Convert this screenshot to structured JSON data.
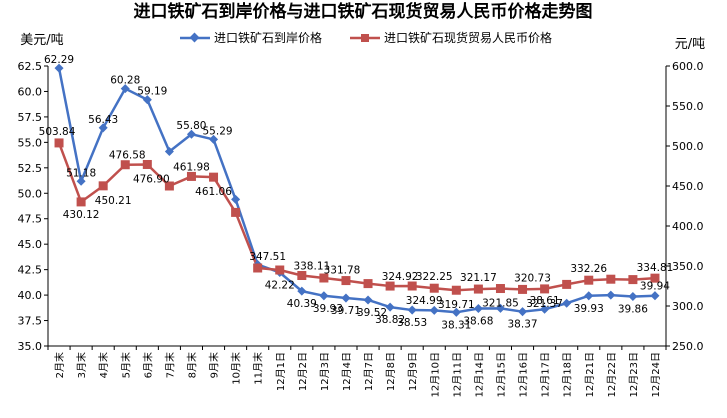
{
  "chart_data": {
    "type": "line",
    "title": "进口铁矿石到岸价格与进口铁矿石现货贸易人民币价格走势图",
    "y_left_unit": "美元/吨",
    "y_right_unit": "元/吨",
    "y_left_range": [
      35.0,
      62.5
    ],
    "y_left_ticks": [
      "35.0",
      "37.5",
      "40.0",
      "42.5",
      "45.0",
      "47.5",
      "50.0",
      "52.5",
      "55.0",
      "57.5",
      "60.0",
      "62.5"
    ],
    "y_right_range": [
      250.0,
      600.0
    ],
    "y_right_ticks": [
      "250.0",
      "300.0",
      "350.0",
      "400.0",
      "450.0",
      "500.0",
      "550.0",
      "600.0"
    ],
    "grid": false,
    "legend_position": "top",
    "categories": [
      "2月末",
      "3月末",
      "4月末",
      "5月末",
      "6月末",
      "7月末",
      "8月末",
      "9月末",
      "10月末",
      "11月末",
      "12月1日",
      "12月2日",
      "12月3日",
      "12月4日",
      "12月7日",
      "12月8日",
      "12月9日",
      "12月10日",
      "12月11日",
      "12月14日",
      "12月15日",
      "12月16日",
      "12月17日",
      "12月18日",
      "12月21日",
      "12月22日",
      "12月23日",
      "12月24日"
    ],
    "series": [
      {
        "name": "进口铁矿石到岸价格",
        "axis": "left",
        "color": "#4472C4",
        "marker": "diamond",
        "values": [
          62.29,
          51.18,
          56.43,
          60.28,
          59.19,
          54.1,
          55.8,
          55.29,
          49.4,
          43.0,
          42.22,
          40.39,
          39.93,
          39.71,
          39.52,
          38.82,
          38.53,
          38.5,
          38.31,
          38.68,
          38.7,
          38.37,
          38.61,
          39.2,
          39.93,
          40.0,
          39.86,
          39.94
        ],
        "labels": [
          "62.29",
          "51.18",
          "56.43",
          "60.28",
          "59.19",
          "",
          "55.80",
          "55.29",
          "",
          "",
          "42.22",
          "40.39",
          "39.93",
          "39.71",
          "39.52",
          "38.82",
          "38.53",
          "",
          "38.31",
          "38.68",
          "",
          "38.37",
          "38.61",
          "",
          "39.93",
          "",
          "39.86",
          "39.94"
        ]
      },
      {
        "name": "进口铁矿石现货贸易人民币价格",
        "axis": "right",
        "color": "#C0504D",
        "marker": "square",
        "values": [
          503.84,
          430.12,
          450.21,
          476.58,
          476.9,
          450.0,
          461.98,
          461.06,
          417.0,
          347.51,
          345.0,
          338.11,
          335.0,
          331.78,
          328.0,
          324.92,
          324.99,
          322.25,
          319.71,
          321.17,
          321.85,
          320.73,
          321.37,
          327.0,
          332.26,
          333.5,
          333.0,
          334.81
        ],
        "labels": [
          "503.84",
          "430.12",
          "450.21",
          "476.58",
          "476.90",
          "",
          "461.98",
          "461.06",
          "",
          "347.51",
          "",
          "338.11",
          "",
          "331.78",
          "",
          "324.92",
          "324.99",
          "322.25",
          "319.71",
          "321.17",
          "321.85",
          "320.73",
          "321.37",
          "",
          "332.26",
          "",
          "",
          "334.81"
        ]
      }
    ]
  }
}
